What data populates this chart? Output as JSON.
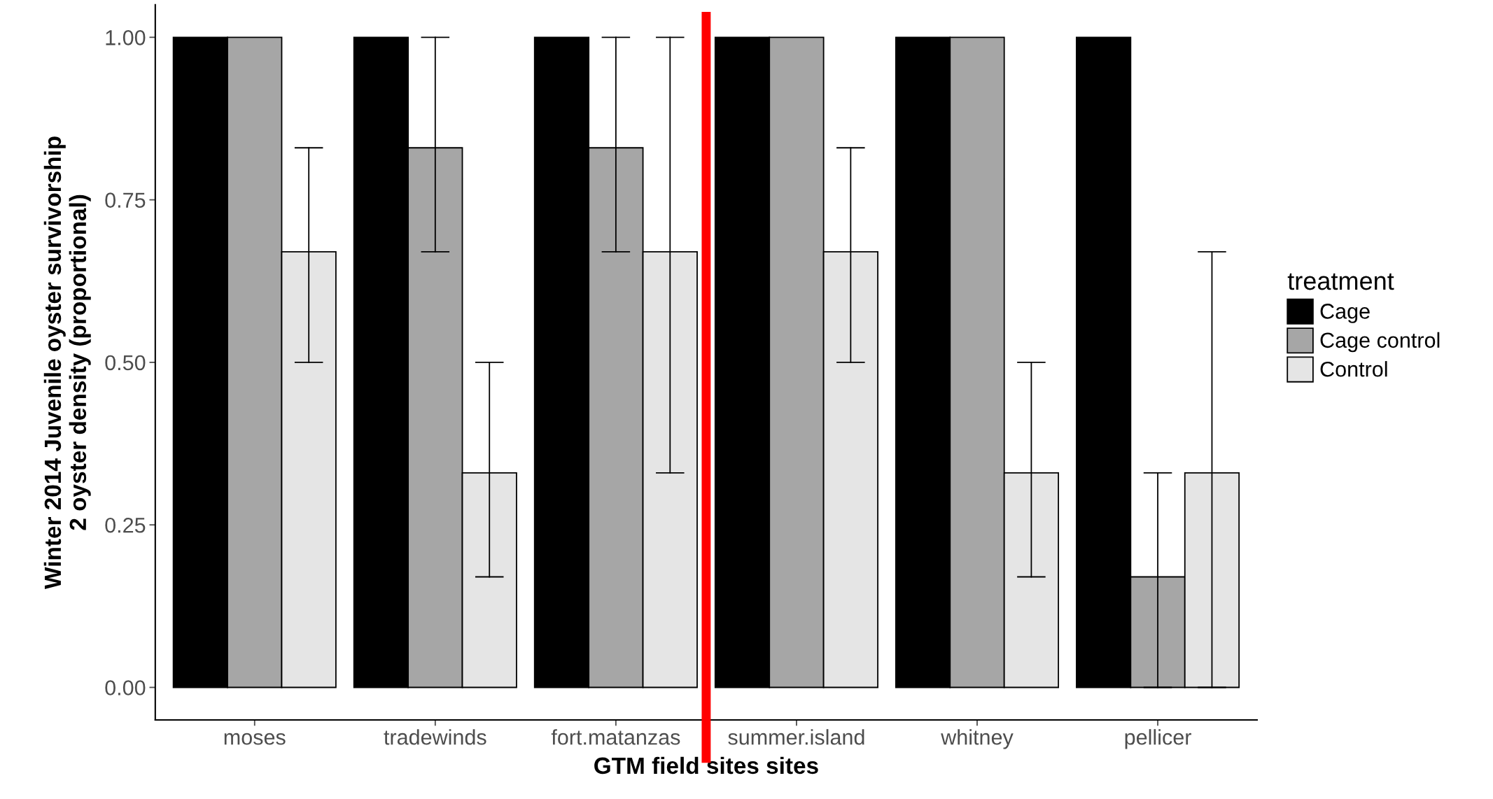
{
  "chart_data": {
    "type": "bar",
    "xlabel": "GTM field sites sites",
    "ylabel": "Winter 2014 Juvenile oyster survivorship\n2 oyster density (proportional)",
    "legend_title": "treatment",
    "categories": [
      "moses",
      "tradewinds",
      "fort.matanzas",
      "summer.island",
      "whitney",
      "pellicer"
    ],
    "series": [
      {
        "name": "Cage",
        "color": "#000000",
        "values": [
          1,
          1,
          1,
          1,
          1,
          1
        ]
      },
      {
        "name": "Cage control",
        "color": "#a6a6a6",
        "values": [
          1,
          0.83,
          0.83,
          1,
          1,
          0.17
        ],
        "errors": [
          null,
          [
            0.67,
            1
          ],
          [
            0.67,
            1
          ],
          null,
          null,
          [
            0,
            0.33
          ]
        ]
      },
      {
        "name": "Control",
        "color": "#e5e5e5",
        "values": [
          0.67,
          0.33,
          0.67,
          0.67,
          0.33,
          0.33
        ],
        "errors": [
          [
            0.5,
            0.83
          ],
          [
            0.17,
            0.5
          ],
          [
            0.33,
            1
          ],
          [
            0.5,
            0.83
          ],
          [
            0.17,
            0.5
          ],
          [
            0,
            0.67
          ]
        ]
      }
    ],
    "ylim": [
      -0.05,
      1.05
    ],
    "yticks": [
      {
        "value": 0,
        "label": "0.00"
      },
      {
        "value": 0.25,
        "label": "0.25"
      },
      {
        "value": 0.5,
        "label": "0.50"
      },
      {
        "value": 0.75,
        "label": "0.75"
      },
      {
        "value": 1,
        "label": "1.00"
      }
    ],
    "grid": false,
    "legend": "right"
  }
}
